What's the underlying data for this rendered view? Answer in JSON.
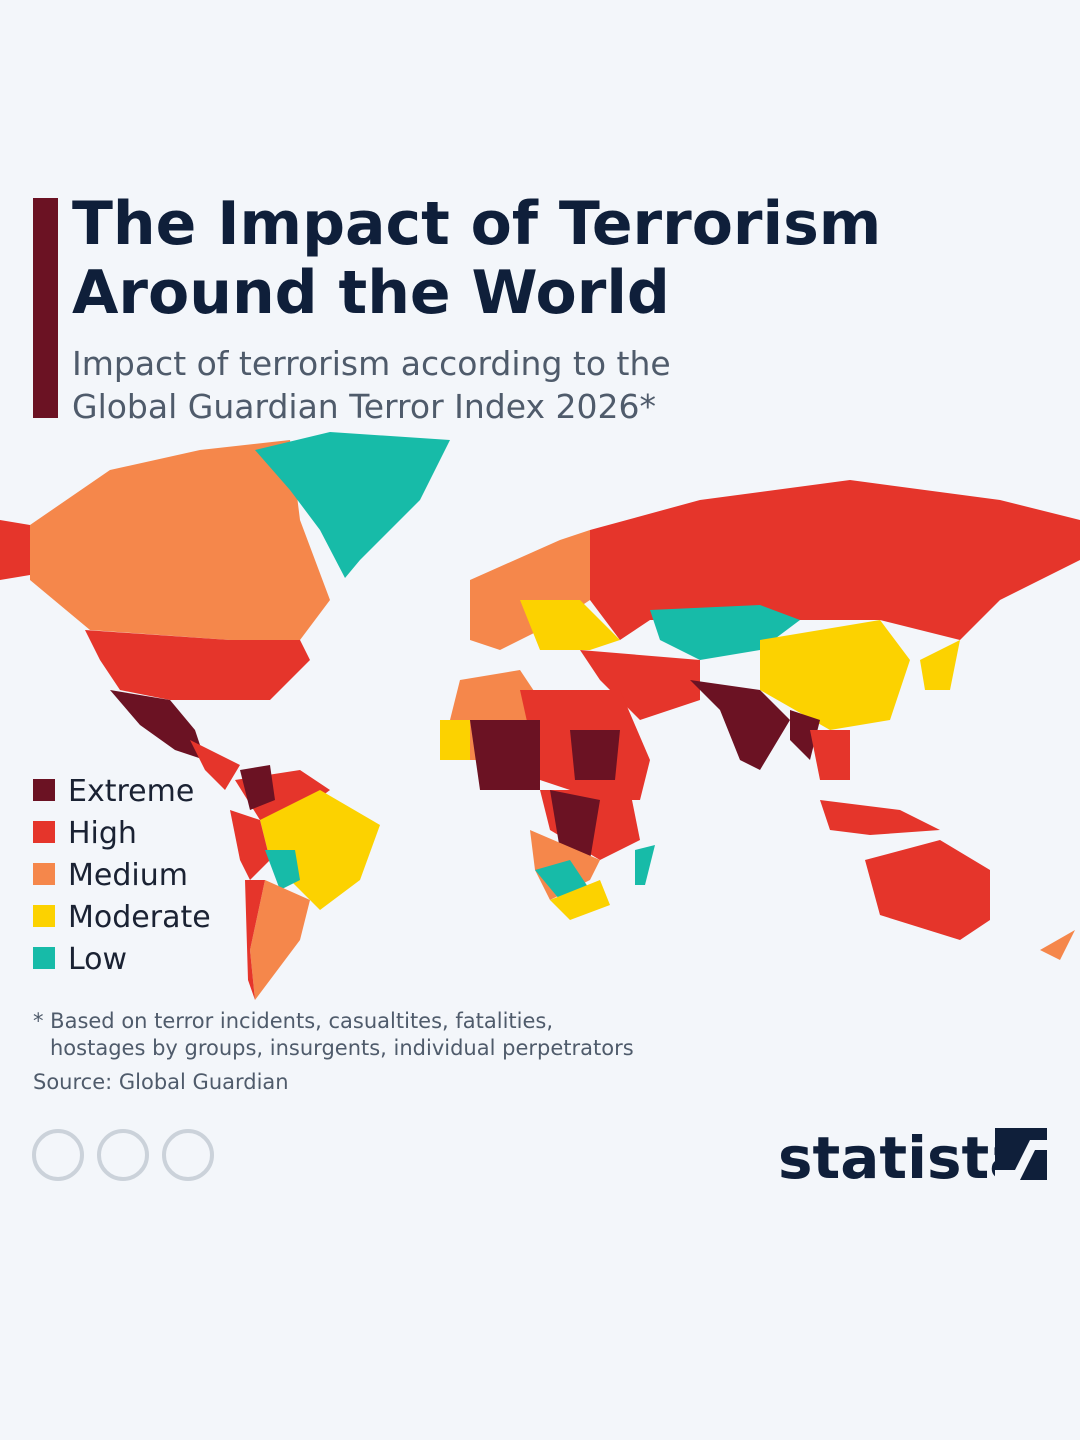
{
  "header": {
    "title_lines": [
      "The Impact of Terrorism",
      "Around the World"
    ],
    "subtitle_lines": [
      "Impact of terrorism according to the",
      "Global Guardian Terror Index 2026*"
    ]
  },
  "legend": [
    {
      "label": "Extreme",
      "color": "#6b1223"
    },
    {
      "label": "High",
      "color": "#e5352b"
    },
    {
      "label": "Medium",
      "color": "#f5874b"
    },
    {
      "label": "Moderate",
      "color": "#fcd200"
    },
    {
      "label": "Low",
      "color": "#17bba8"
    }
  ],
  "footnote_lines": [
    "* Based on terror incidents, casualtites, fatalities,",
    "hostages by groups, insurgents, individual perpetrators"
  ],
  "source": "Source: Global Guardian",
  "brand": "statista"
}
